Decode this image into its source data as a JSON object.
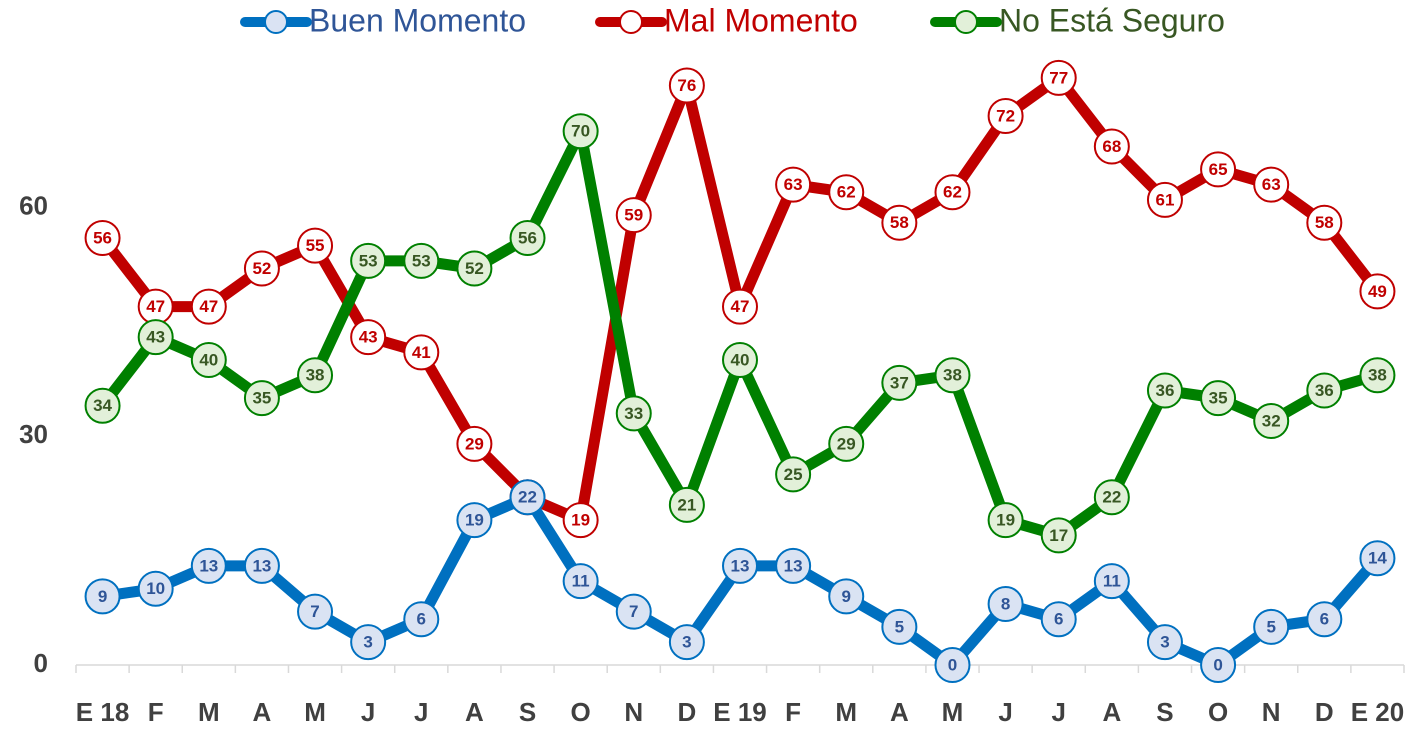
{
  "chart_data": {
    "type": "line",
    "categories": [
      "E 18",
      "F",
      "M",
      "A",
      "M",
      "J",
      "J",
      "A",
      "S",
      "O",
      "N",
      "D",
      "E 19",
      "F",
      "M",
      "A",
      "M",
      "J",
      "J",
      "A",
      "S",
      "O",
      "N",
      "D",
      "E 20"
    ],
    "series": [
      {
        "name": "Buen Momento",
        "color": "#0070c0",
        "values": [
          9,
          10,
          13,
          13,
          7,
          3,
          6,
          19,
          22,
          11,
          7,
          3,
          13,
          13,
          9,
          5,
          0,
          8,
          6,
          11,
          3,
          0,
          5,
          6,
          14
        ]
      },
      {
        "name": "Mal Momento",
        "color": "#c00000",
        "values": [
          56,
          47,
          47,
          52,
          55,
          43,
          41,
          29,
          22,
          19,
          59,
          76,
          47,
          63,
          62,
          58,
          62,
          72,
          77,
          68,
          61,
          65,
          63,
          58,
          49
        ]
      },
      {
        "name": "No Está Seguro",
        "color": "#008000",
        "values": [
          34,
          43,
          40,
          35,
          38,
          53,
          53,
          52,
          56,
          70,
          33,
          21,
          40,
          25,
          29,
          37,
          38,
          19,
          17,
          22,
          36,
          35,
          32,
          36,
          38
        ]
      }
    ],
    "ylim": [
      0,
      80
    ],
    "yticks": [
      0,
      30,
      60
    ],
    "grid": false,
    "legend": "top"
  }
}
